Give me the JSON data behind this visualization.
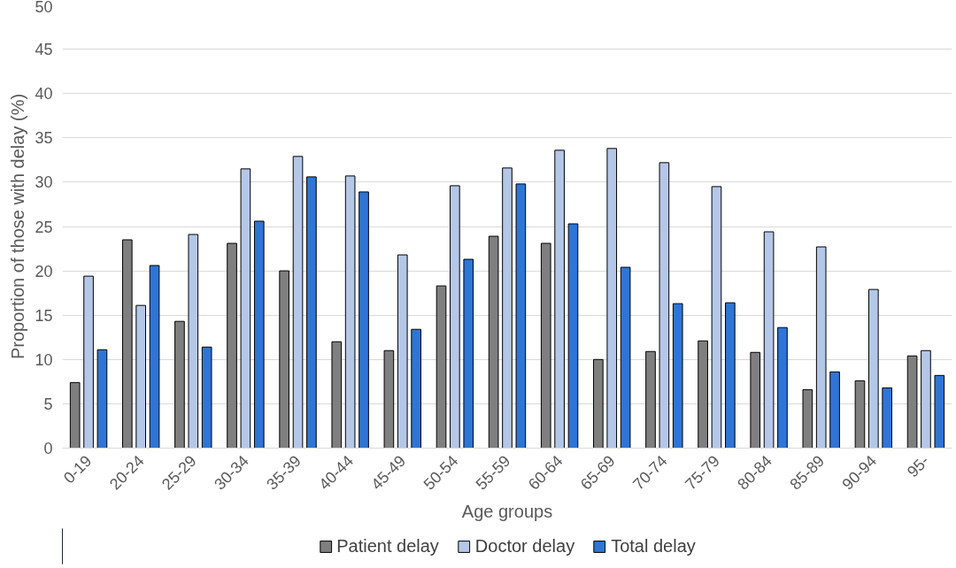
{
  "chart_data": {
    "type": "bar",
    "xlabel": "Age groups",
    "ylabel": "Proportion of those with delay (%)",
    "categories": [
      "0-19",
      "20-24",
      "25-29",
      "30-34",
      "35-39",
      "40-44",
      "45-49",
      "50-54",
      "55-59",
      "60-64",
      "65-69",
      "70-74",
      "75-79",
      "80-84",
      "85-89",
      "90-94",
      "95-"
    ],
    "series": [
      {
        "name": "Patient delay",
        "color": "#7f7f7f",
        "values": [
          7.4,
          23.5,
          14.3,
          23.1,
          20.0,
          12.0,
          11.0,
          18.3,
          23.9,
          23.1,
          10.0,
          10.9,
          12.1,
          10.8,
          6.6,
          7.6,
          10.4
        ]
      },
      {
        "name": "Doctor delay",
        "color": "#b4c7e7",
        "values": [
          19.4,
          16.1,
          24.1,
          31.5,
          32.9,
          30.7,
          21.8,
          29.6,
          31.6,
          33.6,
          33.8,
          32.2,
          29.5,
          24.4,
          22.7,
          17.9,
          11.0
        ]
      },
      {
        "name": "Total delay",
        "color": "#2e75d6",
        "values": [
          11.1,
          20.6,
          11.4,
          25.6,
          30.6,
          28.9,
          13.4,
          21.3,
          29.8,
          25.3,
          20.4,
          16.3,
          16.4,
          13.6,
          8.6,
          6.8,
          8.2
        ]
      }
    ],
    "ylim": [
      0,
      50
    ],
    "yticks": [
      0,
      5,
      10,
      15,
      20,
      25,
      30,
      35,
      40,
      45,
      50
    ],
    "grid": "y",
    "legend": "bottom"
  }
}
